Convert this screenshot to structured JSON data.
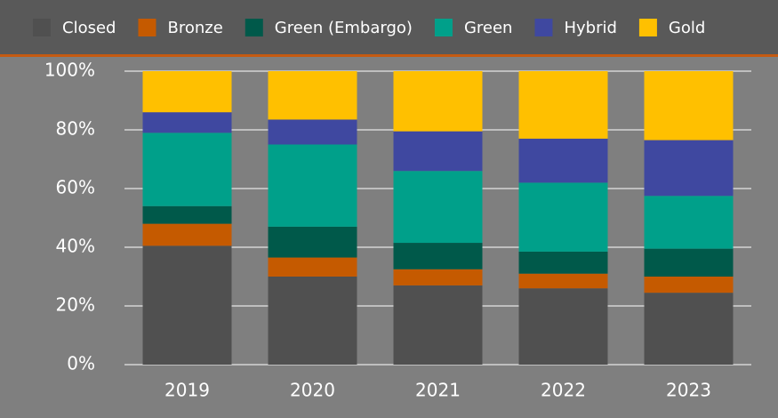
{
  "chart_data": {
    "type": "stacked_bar",
    "categories": [
      "2019",
      "2020",
      "2021",
      "2022",
      "2023"
    ],
    "series": [
      {
        "name": "Closed",
        "color": "#505050",
        "values": [
          40.5,
          30,
          27,
          26,
          24.5
        ]
      },
      {
        "name": "Bronze",
        "color": "#c55a00",
        "values": [
          7.5,
          6.5,
          5.5,
          5,
          5.5
        ]
      },
      {
        "name": "Green (Embargo)",
        "color": "#00594a",
        "values": [
          6,
          10.5,
          9,
          7.5,
          9.5
        ]
      },
      {
        "name": "Green",
        "color": "#00a08a",
        "values": [
          25,
          28,
          24.5,
          23.5,
          18
        ]
      },
      {
        "name": "Hybrid",
        "color": "#3f48a0",
        "values": [
          7,
          8.5,
          13.5,
          15,
          19
        ]
      },
      {
        "name": "Gold",
        "color": "#ffc000",
        "values": [
          14,
          16.5,
          20.5,
          23,
          23.5
        ]
      }
    ],
    "ylim": [
      0,
      100
    ],
    "yticks": [
      {
        "value": 0,
        "label": "0%"
      },
      {
        "value": 20,
        "label": "20%"
      },
      {
        "value": 40,
        "label": "40%"
      },
      {
        "value": 60,
        "label": "60%"
      },
      {
        "value": 80,
        "label": "80%"
      },
      {
        "value": 100,
        "label": "100%"
      }
    ],
    "grid": true,
    "legend": "top"
  }
}
